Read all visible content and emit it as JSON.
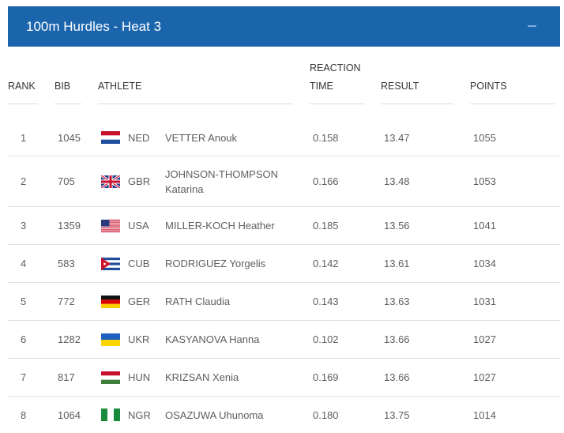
{
  "header": {
    "title": "100m Hurdles - Heat 3",
    "collapse_symbol": "−"
  },
  "columns": {
    "rank": "RANK",
    "bib": "BIB",
    "athlete": "ATHLETE",
    "reaction_line1": "REACTION",
    "reaction_line2": "TIME",
    "result": "RESULT",
    "points": "POINTS"
  },
  "rows": [
    {
      "rank": "1",
      "bib": "1045",
      "nat": "NED",
      "flag": "flag-netherlands-icon",
      "name": "VETTER Anouk",
      "reaction": "0.158",
      "result": "13.47",
      "points": "1055"
    },
    {
      "rank": "2",
      "bib": "705",
      "nat": "GBR",
      "flag": "flag-great-britain-icon",
      "name": "JOHNSON-THOMPSON Katarina",
      "reaction": "0.166",
      "result": "13.48",
      "points": "1053"
    },
    {
      "rank": "3",
      "bib": "1359",
      "nat": "USA",
      "flag": "flag-usa-icon",
      "name": "MILLER-KOCH Heather",
      "reaction": "0.185",
      "result": "13.56",
      "points": "1041"
    },
    {
      "rank": "4",
      "bib": "583",
      "nat": "CUB",
      "flag": "flag-cuba-icon",
      "name": "RODRIGUEZ Yorgelis",
      "reaction": "0.142",
      "result": "13.61",
      "points": "1034"
    },
    {
      "rank": "5",
      "bib": "772",
      "nat": "GER",
      "flag": "flag-germany-icon",
      "name": "RATH Claudia",
      "reaction": "0.143",
      "result": "13.63",
      "points": "1031"
    },
    {
      "rank": "6",
      "bib": "1282",
      "nat": "UKR",
      "flag": "flag-ukraine-icon",
      "name": "KASYANOVA Hanna",
      "reaction": "0.102",
      "result": "13.66",
      "points": "1027"
    },
    {
      "rank": "7",
      "bib": "817",
      "nat": "HUN",
      "flag": "flag-hungary-icon",
      "name": "KRIZSAN Xenia",
      "reaction": "0.169",
      "result": "13.66",
      "points": "1027"
    },
    {
      "rank": "8",
      "bib": "1064",
      "nat": "NGR",
      "flag": "flag-nigeria-icon",
      "name": "OSAZUWA Uhunoma",
      "reaction": "0.180",
      "result": "13.75",
      "points": "1014"
    }
  ],
  "colors": {
    "header_bg": "#1b65ad",
    "header_text": "#ffffff",
    "row_border": "#e1e1e1"
  }
}
